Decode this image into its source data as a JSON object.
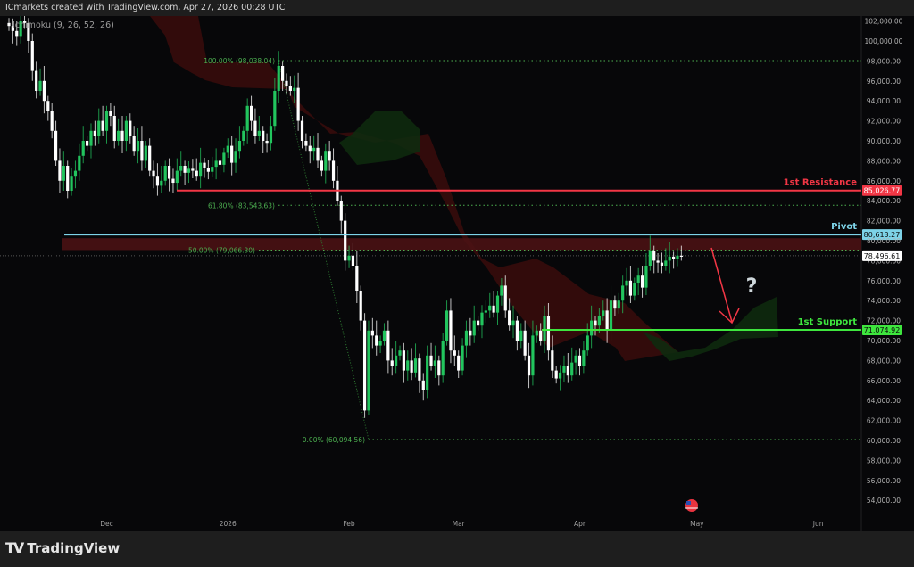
{
  "header": {
    "caption": "ICmarkets created with TradingView.com, Apr 27, 2026 00:28 UTC"
  },
  "indicator": {
    "label": "Ichimoku (9, 26, 52, 26)"
  },
  "brand": {
    "name": "TradingView"
  },
  "colors": {
    "bg": "#070709",
    "up": "#22c55e",
    "down": "#ffffff",
    "resistance": "#f23645",
    "pivot": "#7dd3e8",
    "support": "#3ee63e",
    "fib": "#4caf50",
    "cloud_bear": "#3a0c0c",
    "cloud_bull": "#0e2a0e"
  },
  "levels": {
    "resistance": {
      "label": "1st Resistance",
      "price": 85026.77,
      "price_text": "85,026.77"
    },
    "pivot": {
      "label": "Pivot",
      "price": 80613.27,
      "price_text": "80,613.27"
    },
    "support": {
      "label": "1st Support",
      "price": 71074.92,
      "price_text": "71,074.92"
    },
    "last_price": {
      "price": 78496.61,
      "price_text": "78,496.61"
    }
  },
  "fib": [
    {
      "label": "100.00% (98,038.04)",
      "price": 98038.04
    },
    {
      "label": "61.80% (83,543.63)",
      "price": 83543.63
    },
    {
      "label": "50.00% (79,066.30)",
      "price": 79066.3
    },
    {
      "label": "0.00% (60,094.56)",
      "price": 60094.56
    }
  ],
  "annotation": {
    "question": "?"
  },
  "chart_data": {
    "type": "candlestick",
    "title": "",
    "interval": "1D",
    "start_date": "2025-11-06",
    "ylim": [
      53000,
      103000
    ],
    "y_ticks": [
      "102,000.00",
      "100,000.00",
      "98,000.00",
      "96,000.00",
      "94,000.00",
      "92,000.00",
      "90,000.00",
      "88,000.00",
      "86,000.00",
      "84,000.00",
      "82,000.00",
      "80,000.00",
      "78,000.00",
      "76,000.00",
      "74,000.00",
      "72,000.00",
      "70,000.00",
      "68,000.00",
      "66,000.00",
      "64,000.00",
      "62,000.00",
      "60,000.00",
      "58,000.00",
      "56,000.00",
      "54,000.00"
    ],
    "x_ticks": [
      "Dec",
      "2026",
      "Feb",
      "Mar",
      "Apr",
      "May",
      "Jun"
    ],
    "closes": [
      101500,
      101000,
      100500,
      102000,
      101800,
      100000,
      97000,
      95000,
      96000,
      94000,
      93000,
      91000,
      88000,
      86000,
      87500,
      85000,
      86500,
      87000,
      88500,
      90000,
      89500,
      91000,
      90500,
      92000,
      91000,
      93000,
      92500,
      90000,
      91000,
      90000,
      92000,
      90500,
      89000,
      90000,
      88000,
      89500,
      87000,
      86500,
      85500,
      86000,
      87500,
      86200,
      85800,
      87000,
      87500,
      86800,
      87200,
      87000,
      86500,
      87800,
      87300,
      86900,
      87400,
      88000,
      87600,
      88800,
      89500,
      87800,
      89000,
      90000,
      91000,
      93500,
      92000,
      90500,
      91000,
      90000,
      89800,
      91500,
      95000,
      97500,
      96000,
      95500,
      95000,
      95300,
      92000,
      90000,
      89500,
      89000,
      89300,
      88000,
      87000,
      89000,
      88000,
      86000,
      84000,
      82000,
      78000,
      78500,
      77500,
      75000,
      72000,
      63000,
      71000,
      70500,
      69500,
      70000,
      71000,
      68000,
      67500,
      68500,
      69000,
      67000,
      68000,
      66800,
      68200,
      66000,
      65000,
      68500,
      67500,
      68000,
      66500,
      70000,
      73000,
      69000,
      68500,
      67000,
      69500,
      71000,
      70500,
      72000,
      71500,
      72800,
      73000,
      73500,
      72800,
      74500,
      75500,
      73000,
      71500,
      72000,
      70000,
      71000,
      68500,
      66500,
      70500,
      71000,
      70000,
      72500,
      69000,
      67000,
      66200,
      66800,
      67500,
      66500,
      67800,
      68500,
      67500,
      69000,
      70500,
      72000,
      71500,
      72500,
      73000,
      71000,
      74000,
      73200,
      74000,
      75500,
      76000,
      74500,
      75800,
      76500,
      75300,
      77500,
      79000,
      78000,
      77800,
      77500,
      78000,
      78400,
      78200,
      78500,
      78496.61
    ]
  }
}
